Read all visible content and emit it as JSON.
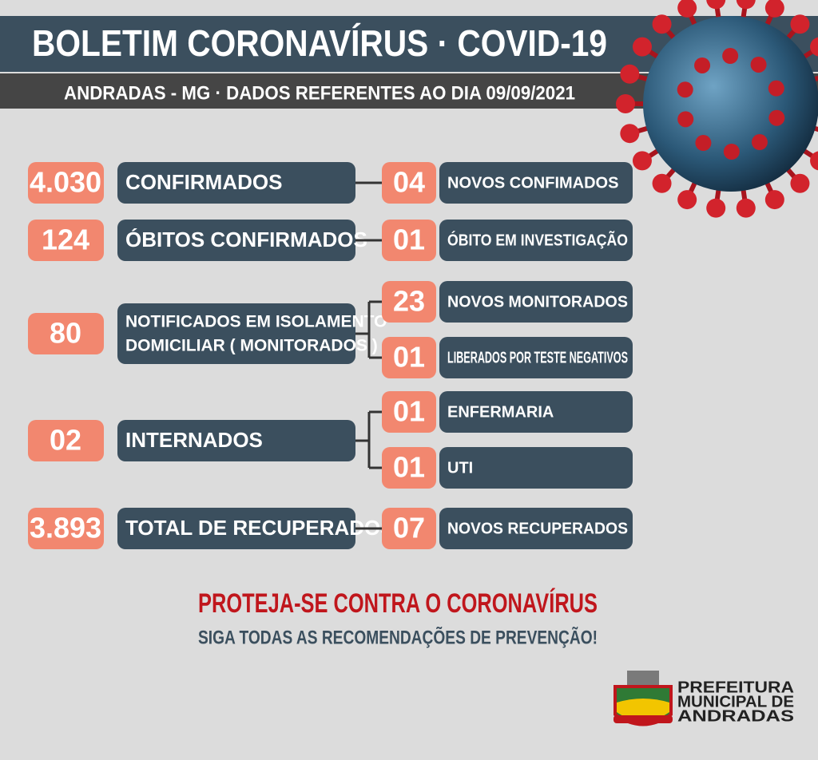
{
  "header": {
    "title": "BOLETIM CORONAVÍRUS · COVID-19",
    "subtitle": "ANDRADAS - MG  ·  DADOS REFERENTES AO DIA 09/09/2021"
  },
  "rows": [
    {
      "number": "4.030",
      "label": [
        "CONFIRMADOS"
      ],
      "details": [
        {
          "number": "04",
          "label": "NOVOS CONFIMADOS"
        }
      ]
    },
    {
      "number": "124",
      "label": [
        "ÓBITOS CONFIRMADOS"
      ],
      "details": [
        {
          "number": "01",
          "label": "ÓBITO EM INVESTIGAÇÃO"
        }
      ]
    },
    {
      "number": "80",
      "label": [
        "NOTIFICADOS EM ISOLAMENTO",
        "DOMICILIAR ( MONITORADOS )"
      ],
      "details": [
        {
          "number": "23",
          "label": "NOVOS MONITORADOS"
        },
        {
          "number": "01",
          "label": "LIBERADOS POR TESTE NEGATIVOS"
        }
      ]
    },
    {
      "number": "02",
      "label": [
        "INTERNADOS"
      ],
      "details": [
        {
          "number": "01",
          "label": "ENFERMARIA"
        },
        {
          "number": "01",
          "label": "UTI"
        }
      ]
    },
    {
      "number": "3.893",
      "label": [
        "TOTAL DE RECUPERADOS"
      ],
      "details": [
        {
          "number": "07",
          "label": "NOVOS RECUPERADOS"
        }
      ]
    }
  ],
  "footer": {
    "headline": "PROTEJA-SE CONTRA O CORONAVÍRUS",
    "subline": "SIGA TODAS AS RECOMENDAÇÕES DE PREVENÇÃO!"
  },
  "logo": {
    "lines": [
      "PREFEITURA",
      "MUNICIPAL DE",
      "ANDRADAS"
    ]
  }
}
